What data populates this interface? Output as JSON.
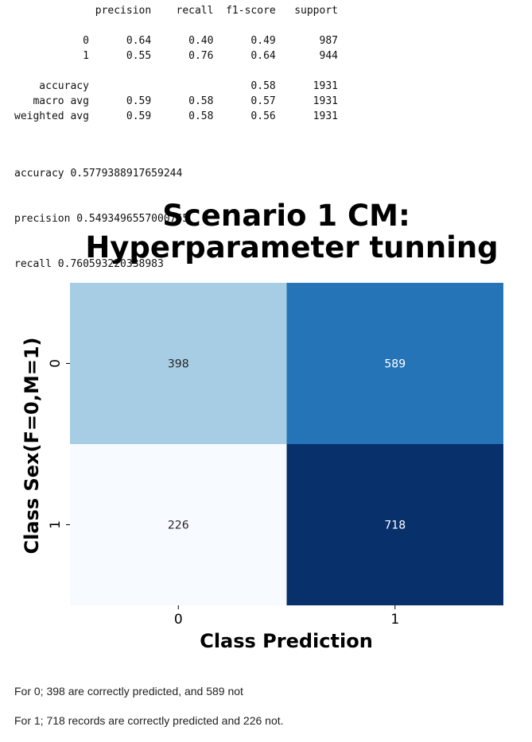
{
  "report": {
    "header": [
      "precision",
      "recall",
      "f1-score",
      "support"
    ],
    "rows": [
      {
        "label": "0",
        "precision": "0.64",
        "recall": "0.40",
        "f1": "0.49",
        "support": "987"
      },
      {
        "label": "1",
        "precision": "0.55",
        "recall": "0.76",
        "f1": "0.64",
        "support": "944"
      },
      {
        "label": "",
        "precision": "",
        "recall": "",
        "f1": "",
        "support": ""
      },
      {
        "label": "accuracy",
        "precision": "",
        "recall": "",
        "f1": "0.58",
        "support": "1931"
      },
      {
        "label": "macro avg",
        "precision": "0.59",
        "recall": "0.58",
        "f1": "0.57",
        "support": "1931"
      },
      {
        "label": "weighted avg",
        "precision": "0.59",
        "recall": "0.58",
        "f1": "0.56",
        "support": "1931"
      }
    ]
  },
  "metrics": {
    "accuracy": "accuracy 0.5779388917659244",
    "precision": "precision 0.5493496557000765",
    "recall": "recall 0.760593220338983"
  },
  "chart_data": {
    "type": "heatmap",
    "title_lines": [
      "Scenario 1 CM:",
      "Hyperparameter tunning"
    ],
    "xlabel": "Class Prediction",
    "ylabel": "Class Sex(F=0,M=1)",
    "x_categories": [
      "0",
      "1"
    ],
    "y_categories": [
      "0",
      "1"
    ],
    "values": [
      [
        398,
        589
      ],
      [
        226,
        718
      ]
    ],
    "colormap": "Blues",
    "colorbar": false
  },
  "notes": {
    "line1": "For 0; 398 are correctly predicted, and 589 not",
    "line2": "For 1; 718 records are correctly predicted and 226 not."
  }
}
